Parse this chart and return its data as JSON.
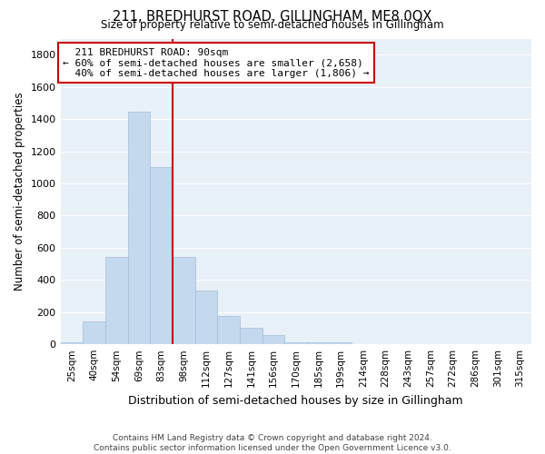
{
  "title": "211, BREDHURST ROAD, GILLINGHAM, ME8 0QX",
  "subtitle": "Size of property relative to semi-detached houses in Gillingham",
  "xlabel": "Distribution of semi-detached houses by size in Gillingham",
  "ylabel": "Number of semi-detached properties",
  "bar_color": "#c5d9ee",
  "bar_edge_color": "#a0bcd8",
  "figure_bg": "#ffffff",
  "axes_bg": "#e8f0f8",
  "grid_color": "#ffffff",
  "categories": [
    "25sqm",
    "40sqm",
    "54sqm",
    "69sqm",
    "83sqm",
    "98sqm",
    "112sqm",
    "127sqm",
    "141sqm",
    "156sqm",
    "170sqm",
    "185sqm",
    "199sqm",
    "214sqm",
    "228sqm",
    "243sqm",
    "257sqm",
    "272sqm",
    "286sqm",
    "301sqm",
    "315sqm"
  ],
  "values": [
    15,
    140,
    540,
    1445,
    1100,
    545,
    335,
    175,
    105,
    55,
    15,
    12,
    12,
    0,
    0,
    0,
    0,
    0,
    0,
    0,
    0
  ],
  "ylim": [
    0,
    1900
  ],
  "yticks": [
    0,
    200,
    400,
    600,
    800,
    1000,
    1200,
    1400,
    1600,
    1800
  ],
  "property_label": "211 BREDHURST ROAD: 90sqm",
  "pct_smaller": 60,
  "pct_larger": 40,
  "count_smaller": 2658,
  "count_larger": 1806,
  "annotation_box_facecolor": "#ffffff",
  "annotation_box_edgecolor": "#cc0000",
  "vline_color": "#cc0000",
  "footer_line1": "Contains HM Land Registry data © Crown copyright and database right 2024.",
  "footer_line2": "Contains public sector information licensed under the Open Government Licence v3.0."
}
